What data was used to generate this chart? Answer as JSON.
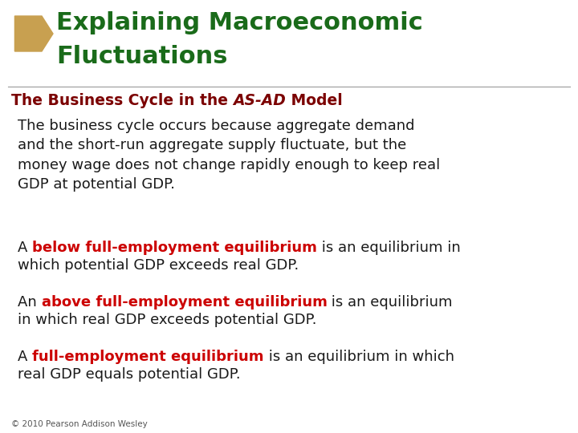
{
  "bg_color": "#ffffff",
  "title_line1": "Explaining Macroeconomic",
  "title_line2": "Fluctuations",
  "title_color": "#1a6b1a",
  "subtitle_color": "#7b0000",
  "para_color": "#1a1a1a",
  "highlight_color": "#cc0000",
  "footer": "© 2010 Pearson Addison Wesley",
  "footer_color": "#555555",
  "diamond_color": "#c8a050"
}
